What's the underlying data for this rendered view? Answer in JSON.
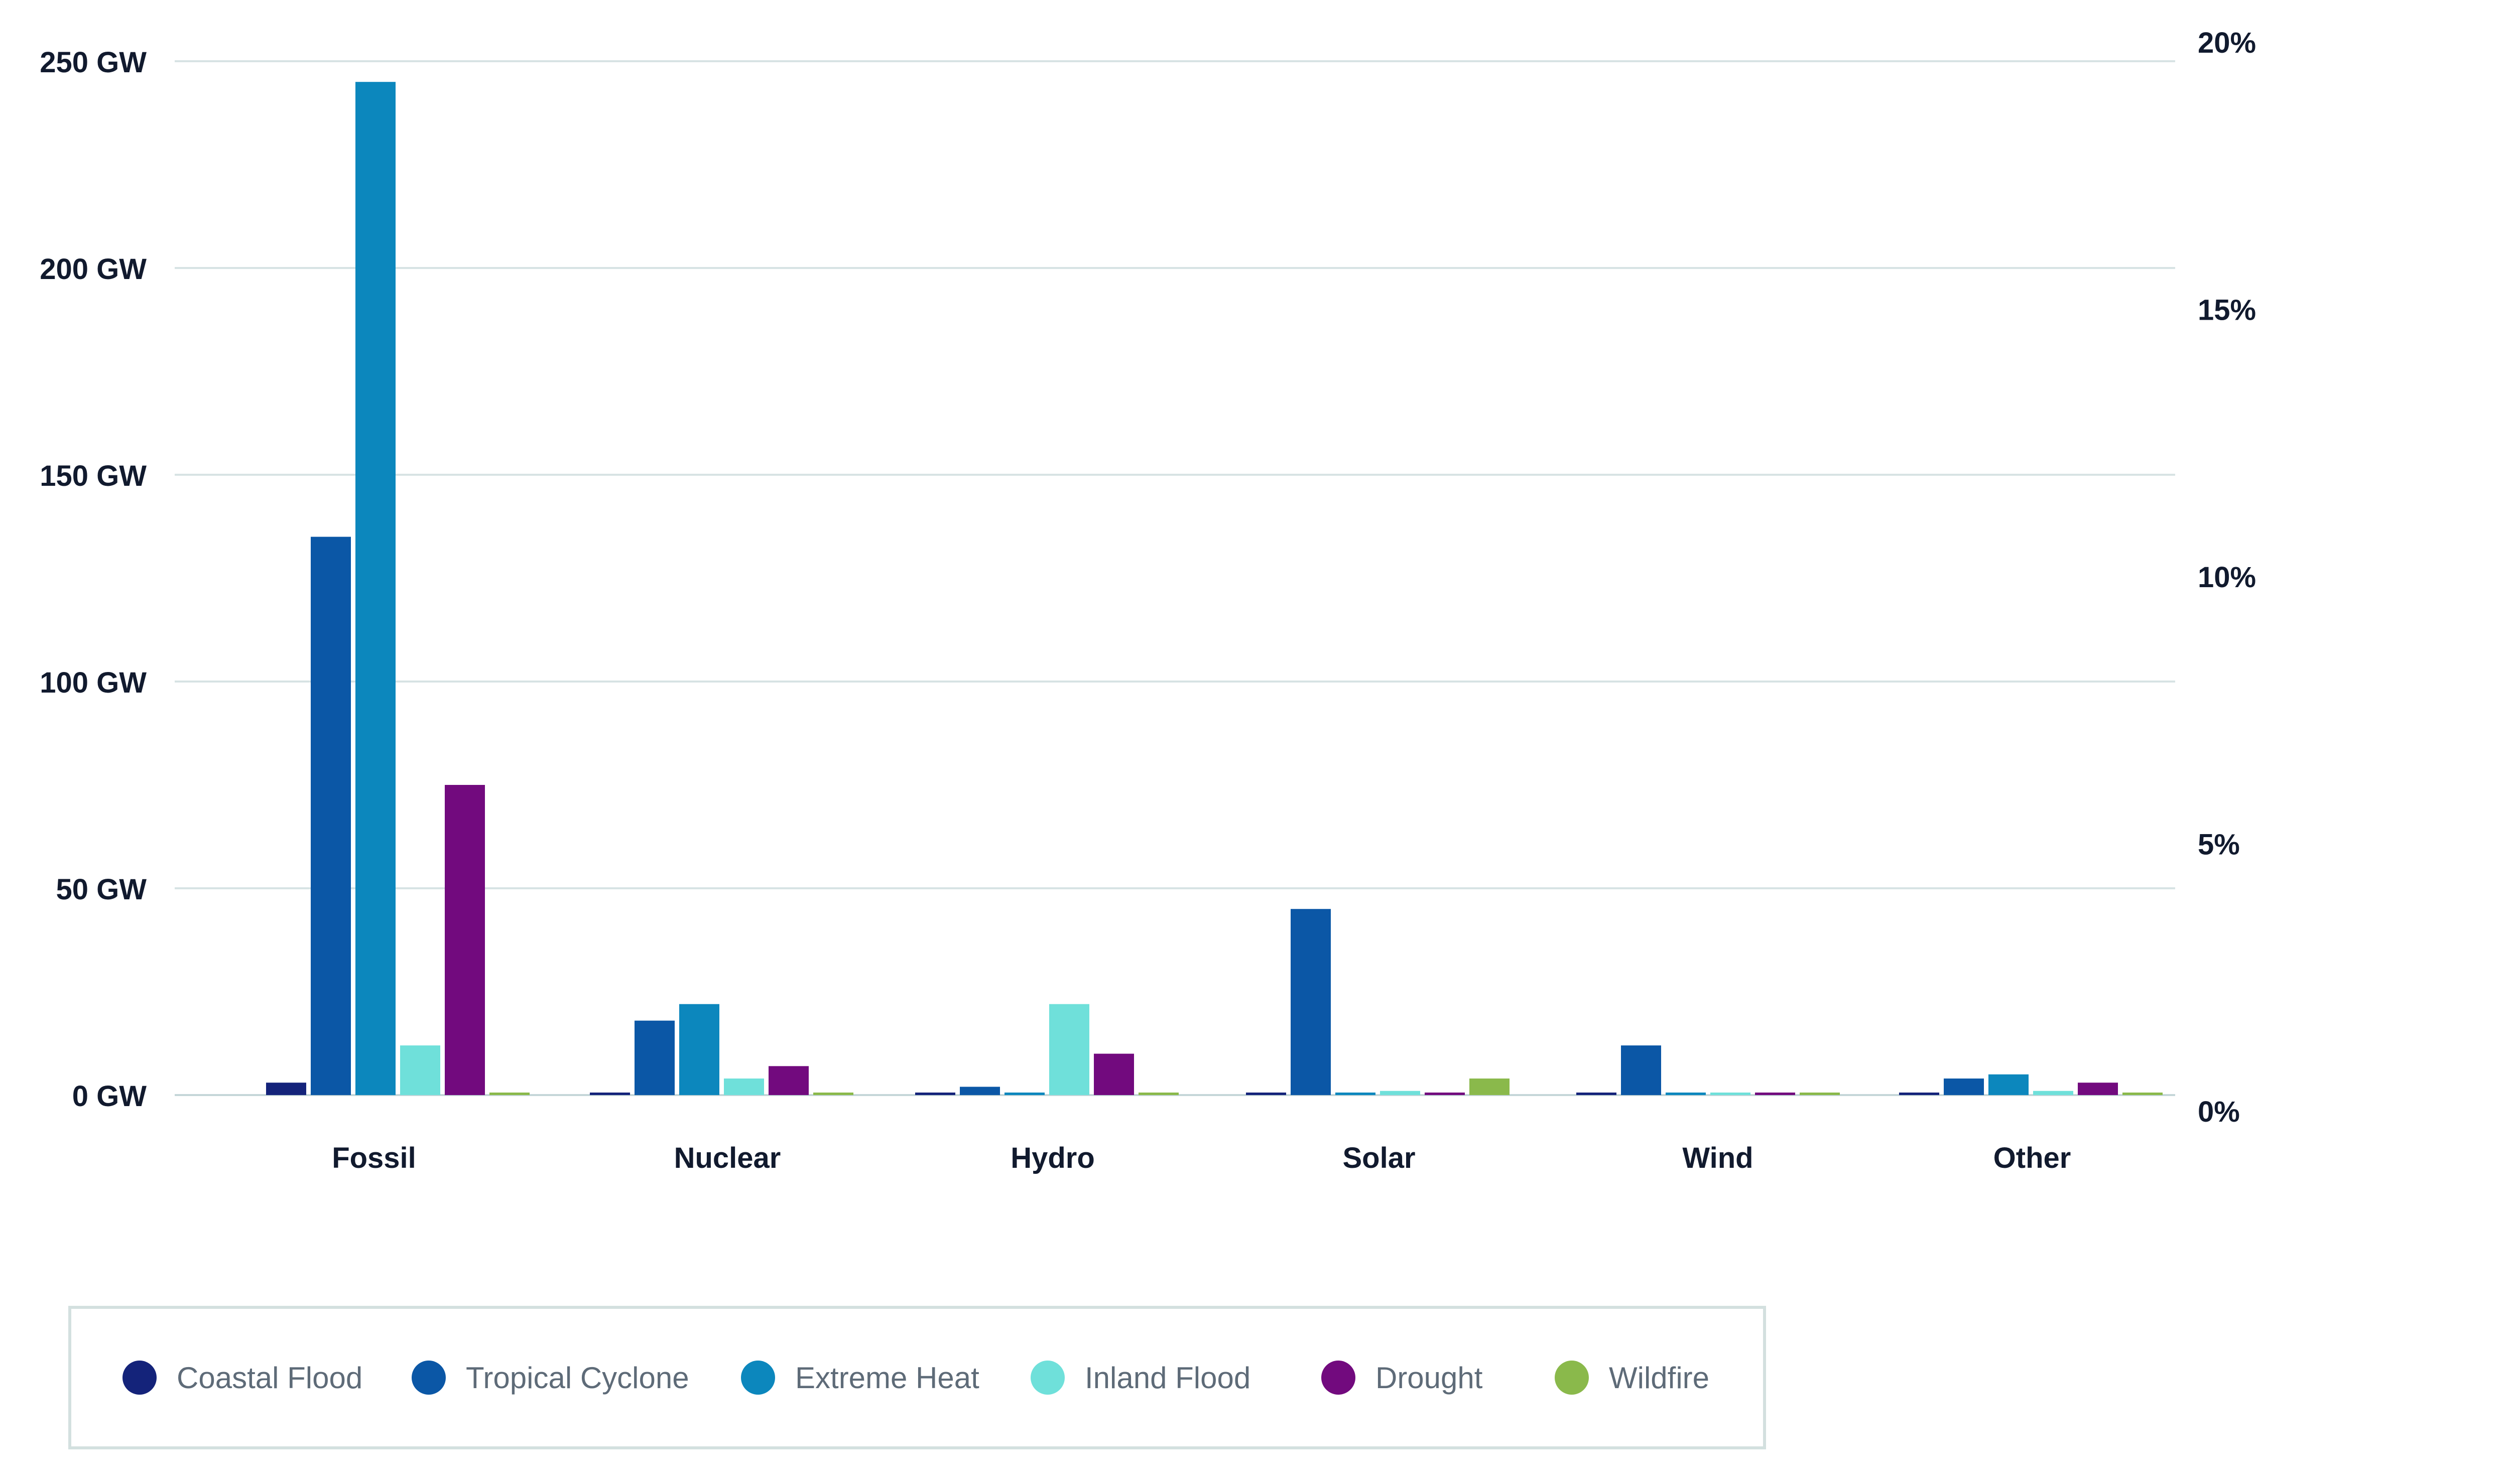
{
  "chart_data": {
    "type": "bar",
    "categories": [
      "Fossil",
      "Nuclear",
      "Hydro",
      "Solar",
      "Wind",
      "Other"
    ],
    "series": [
      {
        "name": "Coastal Flood",
        "color": "#14237a",
        "values": [
          3,
          0.3,
          0.3,
          0.3,
          0.3,
          0.3
        ]
      },
      {
        "name": "Tropical Cyclone",
        "color": "#0b57a6",
        "values": [
          135,
          18,
          2,
          45,
          12,
          4
        ]
      },
      {
        "name": "Extreme Heat",
        "color": "#0c87bd",
        "values": [
          245,
          22,
          0.3,
          0.3,
          0.3,
          5
        ]
      },
      {
        "name": "Inland Flood",
        "color": "#6fe0da",
        "values": [
          12,
          4,
          22,
          1,
          0.3,
          1
        ]
      },
      {
        "name": "Drought",
        "color": "#720a7e",
        "values": [
          75,
          7,
          10,
          0.3,
          0.3,
          3
        ]
      },
      {
        "name": "Wildfire",
        "color": "#8ab94b",
        "values": [
          0.3,
          0.3,
          0.3,
          4,
          0.3,
          0.3
        ]
      }
    ],
    "y_left": {
      "ticks": [
        "0 GW",
        "50 GW",
        "100 GW",
        "150 GW",
        "200 GW",
        "250 GW"
      ],
      "ylim": [
        0,
        250
      ]
    },
    "y_right": {
      "ticks": [
        "0%",
        "5%",
        "10%",
        "15%",
        "20%"
      ],
      "ylim": [
        0,
        20
      ]
    },
    "grid": true,
    "legend_position": "bottom-left"
  }
}
